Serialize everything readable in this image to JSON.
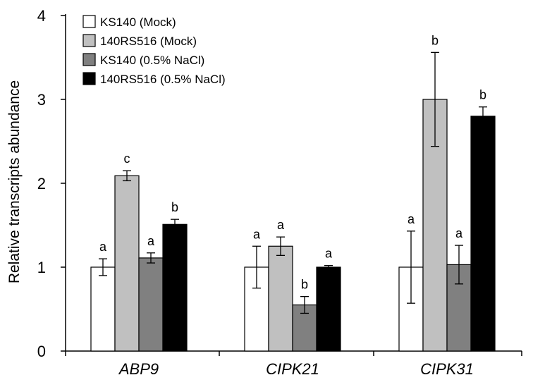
{
  "chart_data": {
    "type": "bar",
    "title": "",
    "xlabel": "",
    "ylabel": "Relative transcripts abundance",
    "ylim": [
      0,
      4
    ],
    "yticks": [
      0,
      1,
      2,
      3,
      4
    ],
    "categories": [
      "ABP9",
      "CIPK21",
      "CIPK31"
    ],
    "legend_position": "top-left",
    "series": [
      {
        "name": "KS140 (Mock)",
        "color": "#ffffff",
        "values": [
          1.0,
          1.0,
          1.0
        ],
        "errors": [
          0.1,
          0.25,
          0.43
        ],
        "labels": [
          "a",
          "a",
          "a"
        ]
      },
      {
        "name": "140RS516 (Mock)",
        "color": "#c0c0c0",
        "values": [
          2.09,
          1.25,
          3.0
        ],
        "errors": [
          0.06,
          0.11,
          0.56
        ],
        "labels": [
          "c",
          "a",
          "b"
        ]
      },
      {
        "name": "KS140 (0.5% NaCl)",
        "color": "#808080",
        "values": [
          1.11,
          0.55,
          1.03
        ],
        "errors": [
          0.06,
          0.1,
          0.23
        ],
        "labels": [
          "a",
          "b",
          "a"
        ]
      },
      {
        "name": "140RS516 (0.5% NaCl)",
        "color": "#000000",
        "values": [
          1.51,
          1.0,
          2.8
        ],
        "errors": [
          0.06,
          0.02,
          0.11
        ],
        "labels": [
          "b",
          "a",
          "b"
        ]
      }
    ]
  }
}
